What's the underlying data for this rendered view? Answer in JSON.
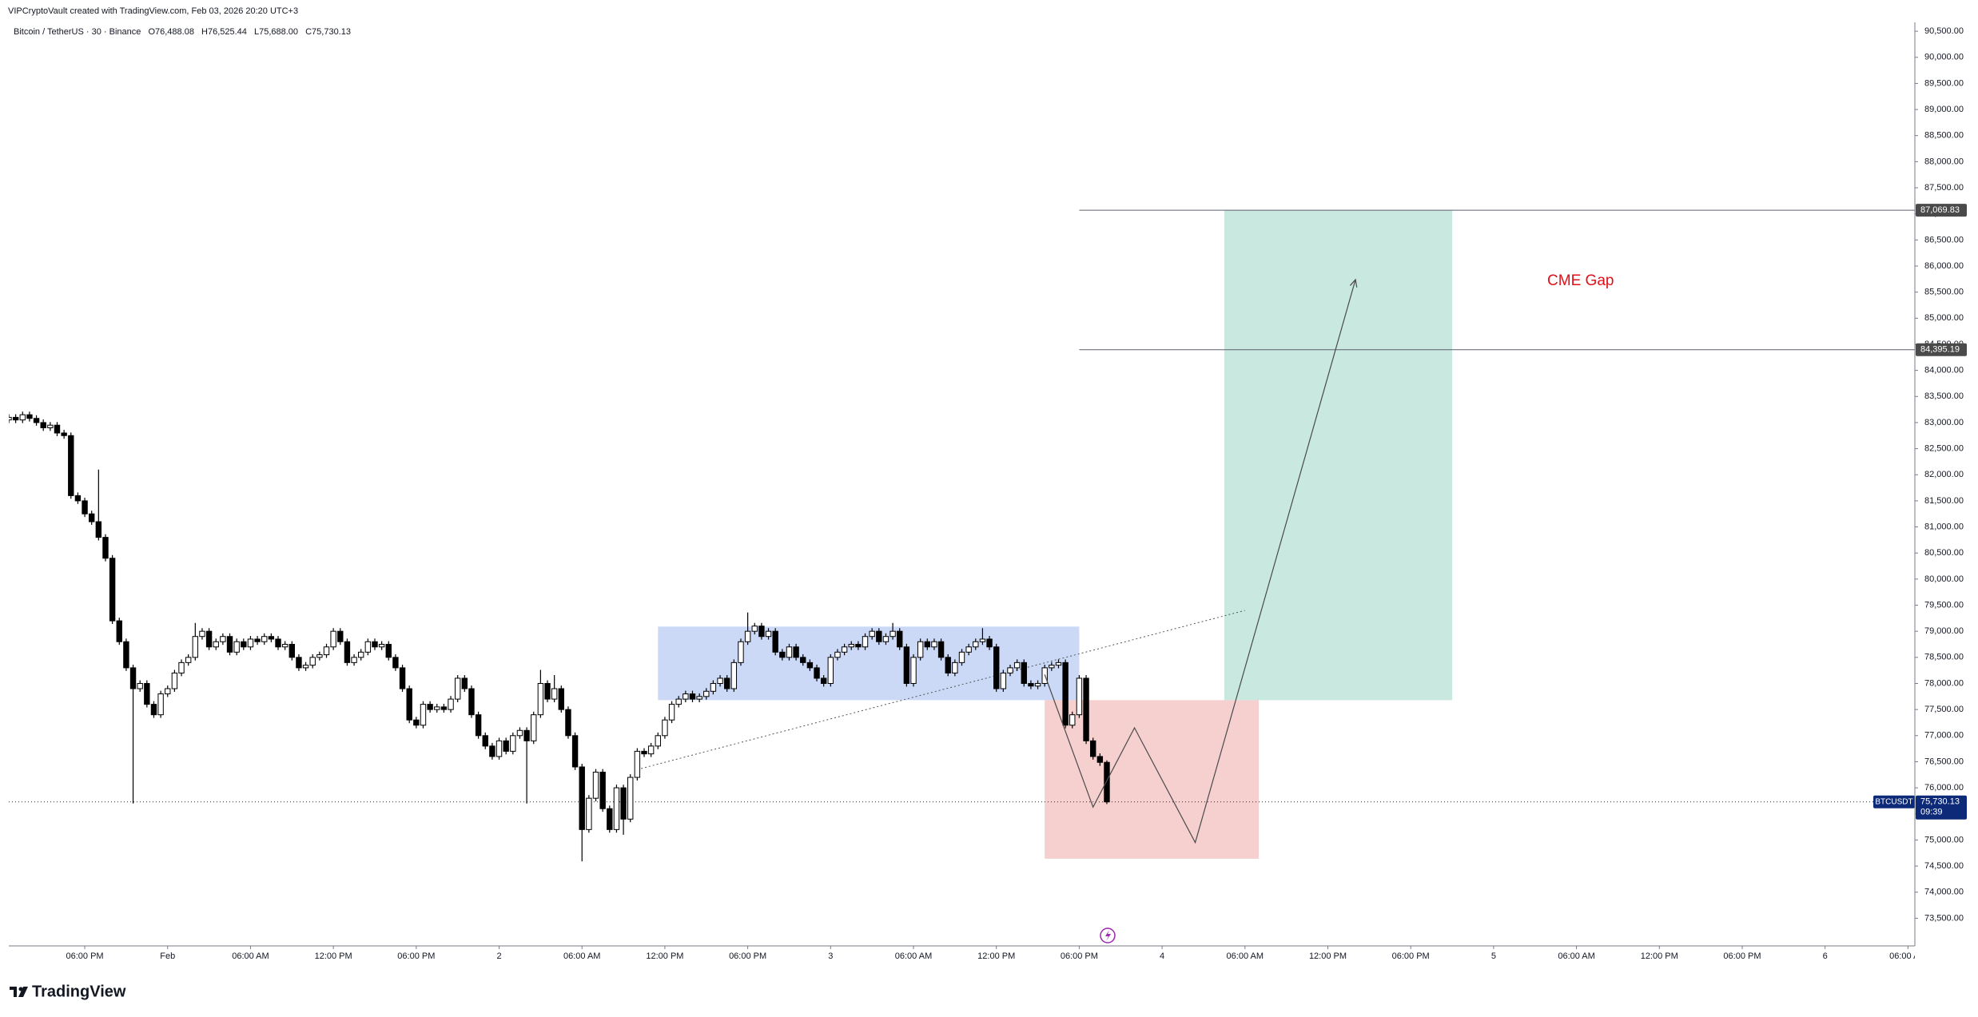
{
  "header": {
    "created": "VIPCryptoVault created with TradingView.com, Feb 03, 2026 20:20 UTC+3",
    "symbol": "Bitcoin / TetherUS · 30 · Binance",
    "open": "O76,488.08",
    "high": "H76,525.44",
    "low": "L75,688.00",
    "close": "C75,730.13"
  },
  "chart_data": {
    "type": "candlestick",
    "x": [
      -11.5,
      -11,
      -10.5,
      -10,
      -9.5,
      -9,
      -8.5,
      -8,
      -7.5,
      -7,
      -6.5,
      -6,
      -5.5,
      -5,
      -4.5,
      -4,
      -3.5,
      -3,
      -2.5,
      -2,
      -1.5,
      -1,
      -0.5,
      0,
      0.5,
      1,
      1.5,
      2,
      2.5,
      3,
      3.5,
      4,
      4.5,
      5,
      5.5,
      6,
      6.5,
      7,
      7.5,
      8,
      8.5,
      9,
      9.5,
      10,
      10.5,
      11,
      11.5,
      12,
      12.5,
      13,
      13.5,
      14,
      14.5,
      15,
      15.5,
      16,
      16.5,
      17,
      17.5,
      18,
      18.5,
      19,
      19.5,
      20,
      20.5,
      21,
      21.5,
      22,
      22.5,
      23,
      23.5,
      24,
      24.5,
      25,
      25.5,
      26,
      26.5,
      27,
      27.5,
      28,
      28.5,
      29,
      29.5,
      30,
      30.5,
      31,
      31.5,
      32,
      32.5,
      33,
      33.5,
      34,
      34.5,
      35,
      35.5,
      36,
      36.5,
      37,
      37.5,
      38,
      38.5,
      39,
      39.5,
      40,
      40.5,
      41,
      41.5,
      42,
      42.5,
      43,
      43.5,
      44,
      44.5,
      45,
      45.5,
      46,
      46.5,
      47,
      47.5,
      48,
      48.5,
      49,
      49.5,
      50,
      50.5,
      51,
      51.5,
      52,
      52.5,
      53,
      53.5,
      54,
      54.5,
      55,
      55.5,
      56,
      56.5,
      57,
      57.5,
      58,
      58.5,
      59,
      59.5,
      60,
      60.5,
      61,
      61.5,
      62,
      62.5,
      63,
      63.5,
      64,
      64.5,
      65,
      65.5,
      66,
      66.5,
      67,
      67.5,
      68
    ],
    "open": [
      83050,
      83100,
      83050,
      83150,
      83080,
      83000,
      82900,
      82950,
      82800,
      82750,
      81600,
      81500,
      81250,
      81100,
      80800,
      80400,
      79200,
      78800,
      78300,
      77900,
      78000,
      77600,
      77400,
      77800,
      77900,
      78200,
      78400,
      78500,
      78900,
      79000,
      78700,
      78800,
      78900,
      78600,
      78800,
      78700,
      78850,
      78800,
      78900,
      78850,
      78700,
      78750,
      78500,
      78300,
      78350,
      78500,
      78550,
      78700,
      79000,
      78800,
      78400,
      78500,
      78600,
      78800,
      78700,
      78750,
      78500,
      78300,
      77900,
      77300,
      77200,
      77600,
      77500,
      77550,
      77500,
      77700,
      78100,
      77900,
      77400,
      77000,
      76800,
      76600,
      76900,
      76700,
      77000,
      77100,
      76900,
      77400,
      78000,
      77700,
      77900,
      77500,
      77000,
      76400,
      75200,
      75800,
      76300,
      75600,
      75200,
      76000,
      75400,
      76200,
      76700,
      76650,
      76800,
      77000,
      77300,
      77600,
      77700,
      77800,
      77700,
      77750,
      77850,
      78000,
      78100,
      77900,
      78400,
      78800,
      79000,
      79100,
      78900,
      79000,
      78600,
      78500,
      78700,
      78500,
      78400,
      78300,
      78100,
      78000,
      78500,
      78600,
      78700,
      78750,
      78700,
      78900,
      79000,
      78800,
      78900,
      79000,
      78700,
      78000,
      78500,
      78800,
      78700,
      78800,
      78500,
      78200,
      78400,
      78600,
      78700,
      78800,
      78850,
      78700,
      77900,
      78200,
      78300,
      78400,
      78000,
      77950,
      78000,
      78300,
      78350,
      78400,
      77200,
      77400,
      78100,
      76900,
      76600,
      76488.08
    ],
    "high": [
      83160,
      83160,
      83210,
      83210,
      83140,
      83060,
      83010,
      83010,
      82860,
      82810,
      81660,
      81560,
      81310,
      82100,
      80860,
      80460,
      79260,
      78860,
      78360,
      78060,
      78060,
      77660,
      77860,
      77960,
      78260,
      78460,
      78560,
      79160,
      79060,
      79060,
      78860,
      78960,
      78960,
      78860,
      78860,
      78910,
      78910,
      78960,
      78960,
      78910,
      78810,
      78810,
      78560,
      78410,
      78560,
      78610,
      78760,
      79060,
      79060,
      78860,
      78560,
      78660,
      78860,
      78860,
      78810,
      78810,
      78560,
      78360,
      77960,
      77360,
      77660,
      77660,
      77610,
      77610,
      77760,
      78160,
      78160,
      77960,
      77460,
      77060,
      76860,
      76960,
      76960,
      77060,
      77160,
      77160,
      77460,
      78260,
      78060,
      78160,
      77960,
      77560,
      77060,
      76460,
      75860,
      76360,
      76360,
      75660,
      76060,
      76060,
      76260,
      76760,
      76760,
      76860,
      77060,
      77360,
      77660,
      77760,
      77860,
      77860,
      77810,
      77910,
      78060,
      78160,
      78160,
      78460,
      78860,
      79360,
      79160,
      79160,
      79060,
      79060,
      78660,
      78760,
      78760,
      78560,
      78460,
      78360,
      78160,
      78560,
      78660,
      78760,
      78810,
      78810,
      78960,
      79060,
      79060,
      78960,
      79160,
      79060,
      78760,
      78560,
      78860,
      78860,
      78860,
      78860,
      78560,
      78460,
      78660,
      78760,
      78860,
      79060,
      78910,
      78760,
      78260,
      78360,
      78460,
      78460,
      78060,
      78060,
      78360,
      78410,
      78460,
      78460,
      77460,
      78160,
      78160,
      76960,
      76660,
      76525.44
    ],
    "low": [
      82990,
      82990,
      82990,
      83020,
      82940,
      82840,
      82840,
      82740,
      82690,
      81540,
      81440,
      81190,
      81040,
      80740,
      80340,
      79140,
      78740,
      78240,
      75700,
      77840,
      77540,
      77340,
      77340,
      77740,
      77840,
      78140,
      78340,
      78440,
      78840,
      78640,
      78640,
      78740,
      78540,
      78540,
      78640,
      78640,
      78740,
      78740,
      78790,
      78640,
      78640,
      78440,
      78240,
      78240,
      78290,
      78440,
      78490,
      78640,
      78740,
      78340,
      78340,
      78440,
      78540,
      78640,
      78640,
      78440,
      78240,
      77840,
      77240,
      77140,
      77140,
      77440,
      77440,
      77440,
      77440,
      77640,
      77840,
      77340,
      76940,
      76740,
      76540,
      76540,
      76640,
      76640,
      76940,
      75700,
      76840,
      77340,
      77640,
      77640,
      77440,
      76940,
      76340,
      74590,
      75140,
      75740,
      75540,
      75140,
      75140,
      75100,
      75340,
      76140,
      76590,
      76590,
      76740,
      76940,
      77240,
      77540,
      77640,
      77640,
      77640,
      77690,
      77790,
      77940,
      77840,
      77840,
      78340,
      78740,
      78940,
      78840,
      78840,
      78540,
      78440,
      78440,
      78440,
      78340,
      78240,
      78040,
      77940,
      77940,
      78440,
      78540,
      78640,
      78640,
      78640,
      78840,
      78740,
      78740,
      78840,
      78640,
      77940,
      77940,
      78440,
      78640,
      78640,
      78440,
      78140,
      78140,
      78340,
      78540,
      78640,
      78740,
      78640,
      77840,
      77840,
      78140,
      78240,
      77940,
      77890,
      77890,
      77940,
      78240,
      78290,
      77140,
      77140,
      77340,
      76840,
      76540,
      76420,
      75688
    ],
    "close": [
      83100,
      83050,
      83150,
      83080,
      83000,
      82900,
      82950,
      82800,
      82750,
      81600,
      81500,
      81250,
      81100,
      80800,
      80400,
      79200,
      78800,
      78300,
      77900,
      78000,
      77600,
      77400,
      77800,
      77900,
      78200,
      78400,
      78500,
      78900,
      79000,
      78700,
      78800,
      78900,
      78600,
      78800,
      78700,
      78850,
      78800,
      78900,
      78850,
      78700,
      78750,
      78500,
      78300,
      78350,
      78500,
      78550,
      78700,
      79000,
      78800,
      78400,
      78500,
      78600,
      78800,
      78700,
      78750,
      78500,
      78300,
      77900,
      77300,
      77200,
      77600,
      77500,
      77550,
      77500,
      77700,
      78100,
      77900,
      77400,
      77000,
      76800,
      76600,
      76900,
      76700,
      77000,
      77100,
      76900,
      77400,
      78000,
      77700,
      77900,
      77500,
      77000,
      76400,
      75200,
      75800,
      76300,
      75600,
      75200,
      76000,
      75400,
      76200,
      76700,
      76650,
      76800,
      77000,
      77300,
      77600,
      77700,
      77800,
      77700,
      77750,
      77850,
      78000,
      78100,
      77900,
      78400,
      78800,
      79000,
      79100,
      78900,
      79000,
      78600,
      78500,
      78700,
      78500,
      78400,
      78300,
      78100,
      78000,
      78500,
      78600,
      78700,
      78750,
      78700,
      78900,
      79000,
      78800,
      78900,
      79000,
      78700,
      78000,
      78500,
      78800,
      78700,
      78800,
      78500,
      78200,
      78400,
      78600,
      78700,
      78800,
      78850,
      78700,
      77900,
      78200,
      78300,
      78400,
      78000,
      77950,
      78000,
      78300,
      78350,
      78400,
      77200,
      77400,
      78100,
      76900,
      76600,
      76488.08,
      75730.13
    ],
    "up_color": "#ffffff",
    "down_color": "#000000",
    "grid": false,
    "xlim": [
      -11.5,
      126.5
    ],
    "ylim": [
      72970,
      90670
    ],
    "xticks": [
      {
        "value": -6,
        "label": "06:00 PM"
      },
      {
        "value": 0,
        "label": "Feb"
      },
      {
        "value": 6,
        "label": "06:00 AM"
      },
      {
        "value": 12,
        "label": "12:00 PM"
      },
      {
        "value": 18,
        "label": "06:00 PM"
      },
      {
        "value": 24,
        "label": "2"
      },
      {
        "value": 30,
        "label": "06:00 AM"
      },
      {
        "value": 36,
        "label": "12:00 PM"
      },
      {
        "value": 42,
        "label": "06:00 PM"
      },
      {
        "value": 48,
        "label": "3"
      },
      {
        "value": 54,
        "label": "06:00 AM"
      },
      {
        "value": 60,
        "label": "12:00 PM"
      },
      {
        "value": 66,
        "label": "06:00 PM"
      },
      {
        "value": 72,
        "label": "4"
      },
      {
        "value": 78,
        "label": "06:00 AM"
      },
      {
        "value": 84,
        "label": "12:00 PM"
      },
      {
        "value": 90,
        "label": "06:00 PM"
      },
      {
        "value": 96,
        "label": "5"
      },
      {
        "value": 102,
        "label": "06:00 AM"
      },
      {
        "value": 108,
        "label": "12:00 PM"
      },
      {
        "value": 114,
        "label": "06:00 PM"
      },
      {
        "value": 120,
        "label": "6"
      },
      {
        "value": 126,
        "label": "06:00 AM"
      }
    ],
    "yticks": [
      {
        "value": 73500,
        "label": "73,500.00"
      },
      {
        "value": 74000,
        "label": "74,000.00"
      },
      {
        "value": 74500,
        "label": "74,500.00"
      },
      {
        "value": 75000,
        "label": "75,000.00"
      },
      {
        "value": 75500,
        "label": "75,500.00"
      },
      {
        "value": 76000,
        "label": "76,000.00"
      },
      {
        "value": 76500,
        "label": "76,500.00"
      },
      {
        "value": 77000,
        "label": "77,000.00"
      },
      {
        "value": 77500,
        "label": "77,500.00"
      },
      {
        "value": 78000,
        "label": "78,000.00"
      },
      {
        "value": 78500,
        "label": "78,500.00"
      },
      {
        "value": 79000,
        "label": "79,000.00"
      },
      {
        "value": 79500,
        "label": "79,500.00"
      },
      {
        "value": 80000,
        "label": "80,000.00"
      },
      {
        "value": 80500,
        "label": "80,500.00"
      },
      {
        "value": 81000,
        "label": "81,000.00"
      },
      {
        "value": 81500,
        "label": "81,500.00"
      },
      {
        "value": 82000,
        "label": "82,000.00"
      },
      {
        "value": 82500,
        "label": "82,500.00"
      },
      {
        "value": 83000,
        "label": "83,000.00"
      },
      {
        "value": 83500,
        "label": "83,500.00"
      },
      {
        "value": 84000,
        "label": "84,000.00"
      },
      {
        "value": 84500,
        "label": "84,500.00"
      },
      {
        "value": 85000,
        "label": "85,000.00"
      },
      {
        "value": 85500,
        "label": "85,500.00"
      },
      {
        "value": 86000,
        "label": "86,000.00"
      },
      {
        "value": 86500,
        "label": "86,500.00"
      },
      {
        "value": 87000,
        "label": "87,000.00"
      },
      {
        "value": 87500,
        "label": "87,500.00"
      },
      {
        "value": 88000,
        "label": "88,000.00"
      },
      {
        "value": 88500,
        "label": "88,500.00"
      },
      {
        "value": 89000,
        "label": "89,000.00"
      },
      {
        "value": 89500,
        "label": "89,500.00"
      },
      {
        "value": 90000,
        "label": "90,000.00"
      },
      {
        "value": 90500,
        "label": "90,500.00"
      }
    ],
    "zones": [
      {
        "x": [
          35.5,
          66
        ],
        "y": [
          77680,
          79090
        ],
        "color": "#cbd9f7"
      },
      {
        "x": [
          63.5,
          79
        ],
        "y": [
          74640,
          77680
        ],
        "color": "#f6cfcf"
      },
      {
        "x": [
          76.5,
          93
        ],
        "y": [
          77680,
          87070
        ],
        "color": "#c9e8df"
      }
    ],
    "levels": [
      {
        "value": 87069.83,
        "label": "87,069.83",
        "start": 66
      },
      {
        "value": 84395.19,
        "label": "84,395.19",
        "start": 66
      }
    ],
    "trendline": {
      "x": [
        34,
        78
      ],
      "y": [
        76350,
        79400
      ]
    },
    "projection": {
      "x": [
        63.5,
        67,
        70,
        74.4,
        86
      ],
      "y": [
        78170,
        75630,
        77150,
        74950,
        85740
      ]
    },
    "annotation": {
      "text": "CME Gap",
      "x": 102.3,
      "y": 85710,
      "color": "#e0101a"
    },
    "last_price": {
      "value": 75730.13,
      "label": "75,730.13",
      "symbol": "BTCUSDT",
      "countdown": "09:39",
      "color": "#0d2a78"
    }
  },
  "branding": "TradingView"
}
